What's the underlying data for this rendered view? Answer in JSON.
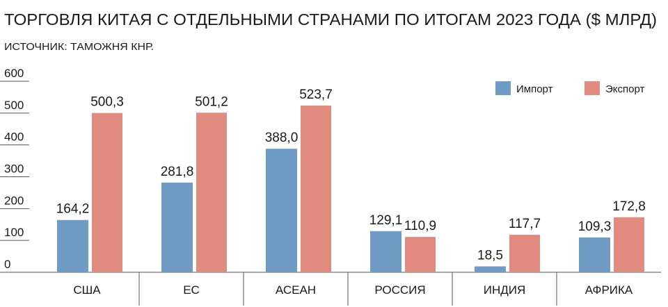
{
  "chart_data": {
    "type": "bar",
    "title": "ТОРГОВЛЯ КИТАЯ С ОТДЕЛЬНЫМИ СТРАНАМИ ПО ИТОГАМ 2023 ГОДА ($ МЛРД)",
    "subtitle": "ИСТОЧНИК: ТАМОЖНЯ КНР.",
    "categories": [
      "США",
      "ЕС",
      "АСЕАН",
      "РОССИЯ",
      "ИНДИЯ",
      "АФРИКА"
    ],
    "series": [
      {
        "name": "Импорт",
        "color": "#6f9bc4",
        "values": [
          164.2,
          281.8,
          388.0,
          129.1,
          18.5,
          109.3
        ],
        "value_labels": [
          "164,2",
          "281,8",
          "388,0",
          "129,1",
          "18,5",
          "109,3"
        ]
      },
      {
        "name": "Экспорт",
        "color": "#df8b7f",
        "values": [
          500.3,
          501.2,
          523.7,
          110.9,
          117.7,
          172.8
        ],
        "value_labels": [
          "500,3",
          "501,2",
          "523,7",
          "110,9",
          "117,7",
          "172,8"
        ]
      }
    ],
    "ylim": [
      0,
      600
    ],
    "yticks": [
      0,
      100,
      200,
      300,
      400,
      500,
      600
    ],
    "legend": "upper right"
  }
}
